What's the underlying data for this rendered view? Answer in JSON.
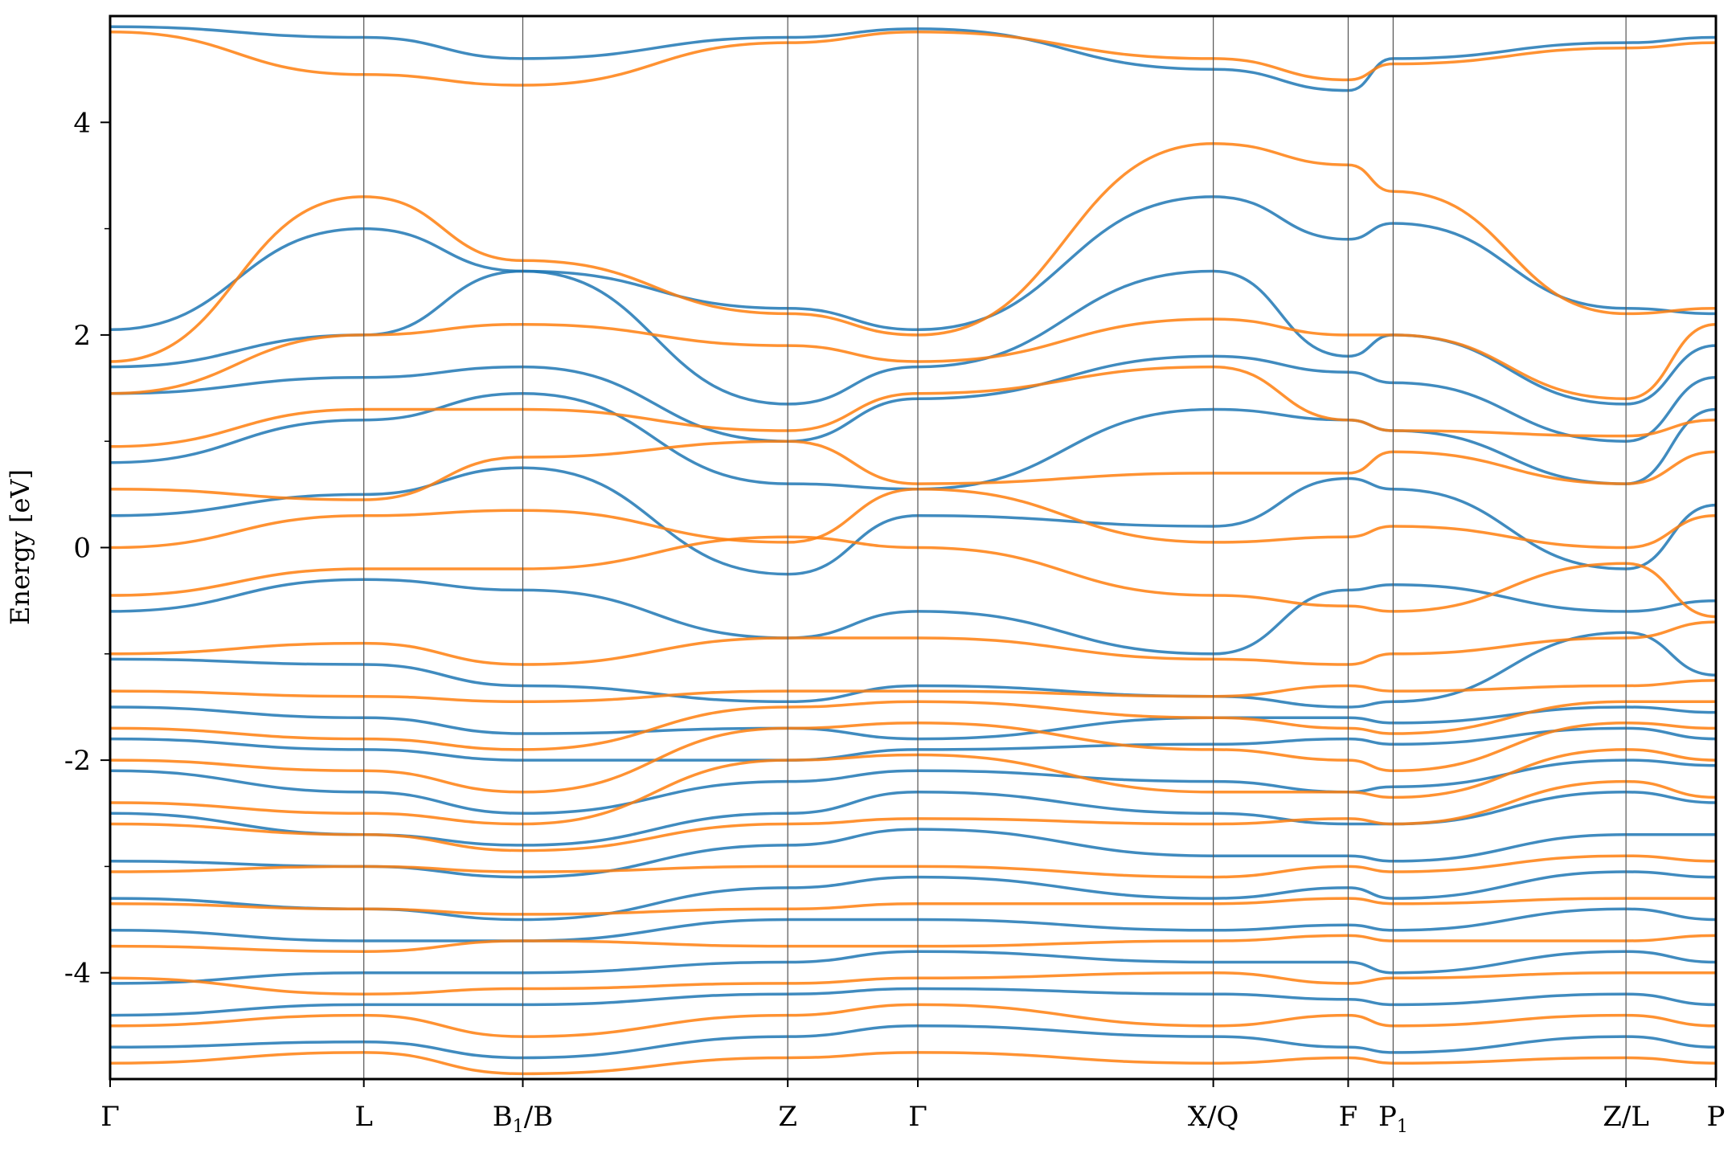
{
  "chart_data": {
    "type": "line",
    "title": "",
    "xlabel": "",
    "ylabel": "Energy [eV]",
    "ylim": [
      -5,
      5
    ],
    "y_ticks": [
      {
        "value": 4,
        "label": "4"
      },
      {
        "value": 2,
        "label": "2"
      },
      {
        "value": 0,
        "label": "0"
      },
      {
        "value": -2,
        "label": "-2"
      },
      {
        "value": -4,
        "label": "-4"
      }
    ],
    "y_minor_ticks": [
      3,
      1,
      -1,
      -3
    ],
    "grid": false,
    "x_ticks": [
      {
        "value": 0.0,
        "label": "Γ",
        "sub": ""
      },
      {
        "value": 0.158,
        "label": "L",
        "sub": ""
      },
      {
        "value": 0.257,
        "label": "B",
        "sub": "1",
        "suffix": "/B"
      },
      {
        "value": 0.422,
        "label": "Z",
        "sub": ""
      },
      {
        "value": 0.503,
        "label": "Γ",
        "sub": ""
      },
      {
        "value": 0.687,
        "label": "X/Q",
        "sub": ""
      },
      {
        "value": 0.771,
        "label": "F",
        "sub": ""
      },
      {
        "value": 0.799,
        "label": "P",
        "sub": "1"
      },
      {
        "value": 0.944,
        "label": "Z/L",
        "sub": ""
      },
      {
        "value": 1.0,
        "label": "P",
        "sub": ""
      }
    ],
    "xlim": [
      0,
      1
    ],
    "series": [
      {
        "color": "#1f77b4"
      },
      {
        "color": "#ff7f0e"
      }
    ],
    "bands": {
      "blue": [
        [
          4.9,
          4.8,
          4.6,
          4.8,
          4.88,
          4.5,
          4.3,
          4.6,
          4.75,
          4.8
        ],
        [
          2.05,
          3.0,
          2.6,
          2.25,
          2.05,
          3.3,
          2.9,
          3.05,
          2.25,
          2.2
        ],
        [
          1.7,
          2.0,
          2.6,
          1.35,
          1.7,
          2.6,
          1.8,
          2.0,
          1.35,
          1.9
        ],
        [
          1.45,
          1.6,
          1.7,
          1.0,
          1.4,
          1.8,
          1.65,
          1.55,
          1.0,
          1.6
        ],
        [
          0.8,
          1.2,
          1.45,
          0.6,
          0.55,
          1.3,
          1.2,
          1.1,
          0.6,
          1.3
        ],
        [
          0.3,
          0.5,
          0.75,
          -0.25,
          0.3,
          0.2,
          0.65,
          0.55,
          -0.2,
          0.4
        ],
        [
          -0.6,
          -0.3,
          -0.4,
          -0.85,
          -0.6,
          -1.0,
          -0.4,
          -0.35,
          -0.6,
          -0.5
        ],
        [
          -1.05,
          -1.1,
          -1.3,
          -1.45,
          -1.3,
          -1.4,
          -1.5,
          -1.45,
          -0.8,
          -1.2
        ],
        [
          -1.5,
          -1.6,
          -1.75,
          -1.7,
          -1.8,
          -1.6,
          -1.6,
          -1.65,
          -1.5,
          -1.55
        ],
        [
          -1.8,
          -1.9,
          -2.0,
          -2.0,
          -1.9,
          -1.85,
          -1.8,
          -1.85,
          -1.7,
          -1.8
        ],
        [
          -2.1,
          -2.3,
          -2.5,
          -2.2,
          -2.1,
          -2.2,
          -2.3,
          -2.25,
          -2.0,
          -2.05
        ],
        [
          -2.5,
          -2.7,
          -2.8,
          -2.5,
          -2.3,
          -2.5,
          -2.6,
          -2.6,
          -2.3,
          -2.4
        ],
        [
          -2.95,
          -3.0,
          -3.1,
          -2.8,
          -2.65,
          -2.9,
          -2.9,
          -2.95,
          -2.7,
          -2.7
        ],
        [
          -3.3,
          -3.4,
          -3.5,
          -3.2,
          -3.1,
          -3.3,
          -3.2,
          -3.3,
          -3.05,
          -3.1
        ],
        [
          -3.6,
          -3.7,
          -3.7,
          -3.5,
          -3.5,
          -3.6,
          -3.55,
          -3.6,
          -3.4,
          -3.5
        ],
        [
          -4.1,
          -4.0,
          -4.0,
          -3.9,
          -3.8,
          -3.9,
          -3.9,
          -4.0,
          -3.8,
          -3.9
        ],
        [
          -4.4,
          -4.3,
          -4.3,
          -4.2,
          -4.15,
          -4.2,
          -4.25,
          -4.3,
          -4.2,
          -4.3
        ],
        [
          -4.7,
          -4.65,
          -4.8,
          -4.6,
          -4.5,
          -4.6,
          -4.7,
          -4.75,
          -4.6,
          -4.7
        ]
      ],
      "orange": [
        [
          4.85,
          4.45,
          4.35,
          4.75,
          4.85,
          4.6,
          4.4,
          4.55,
          4.7,
          4.75
        ],
        [
          1.75,
          3.3,
          2.7,
          2.2,
          2.0,
          3.8,
          3.6,
          3.35,
          2.2,
          2.25
        ],
        [
          1.45,
          2.0,
          2.1,
          1.9,
          1.75,
          2.15,
          2.0,
          2.0,
          1.4,
          2.1
        ],
        [
          0.95,
          1.3,
          1.3,
          1.1,
          1.45,
          1.7,
          1.2,
          1.1,
          1.05,
          1.2
        ],
        [
          0.55,
          0.45,
          0.85,
          1.0,
          0.6,
          0.7,
          0.7,
          0.9,
          0.6,
          0.9
        ],
        [
          0.0,
          0.3,
          0.35,
          0.05,
          0.55,
          0.05,
          0.1,
          0.2,
          0.0,
          0.3
        ],
        [
          -0.45,
          -0.2,
          -0.2,
          0.1,
          0.0,
          -0.45,
          -0.55,
          -0.6,
          -0.15,
          -0.65
        ],
        [
          -1.0,
          -0.9,
          -1.1,
          -0.85,
          -0.85,
          -1.05,
          -1.1,
          -1.0,
          -0.85,
          -0.7
        ],
        [
          -1.35,
          -1.4,
          -1.45,
          -1.35,
          -1.35,
          -1.4,
          -1.3,
          -1.35,
          -1.3,
          -1.25
        ],
        [
          -1.7,
          -1.8,
          -1.9,
          -1.5,
          -1.45,
          -1.6,
          -1.7,
          -1.75,
          -1.45,
          -1.45
        ],
        [
          -2.0,
          -2.1,
          -2.3,
          -1.7,
          -1.65,
          -1.9,
          -2.0,
          -2.1,
          -1.65,
          -1.7
        ],
        [
          -2.4,
          -2.5,
          -2.6,
          -2.0,
          -1.95,
          -2.3,
          -2.3,
          -2.35,
          -1.9,
          -2.0
        ],
        [
          -2.6,
          -2.7,
          -2.85,
          -2.6,
          -2.55,
          -2.6,
          -2.55,
          -2.6,
          -2.2,
          -2.35
        ],
        [
          -3.05,
          -3.0,
          -3.05,
          -3.0,
          -3.0,
          -3.1,
          -3.0,
          -3.05,
          -2.9,
          -2.95
        ],
        [
          -3.35,
          -3.4,
          -3.45,
          -3.4,
          -3.35,
          -3.35,
          -3.3,
          -3.35,
          -3.3,
          -3.3
        ],
        [
          -3.75,
          -3.8,
          -3.7,
          -3.75,
          -3.75,
          -3.7,
          -3.65,
          -3.7,
          -3.7,
          -3.65
        ],
        [
          -4.05,
          -4.2,
          -4.15,
          -4.1,
          -4.05,
          -4.0,
          -4.1,
          -4.05,
          -4.0,
          -4.0
        ],
        [
          -4.5,
          -4.4,
          -4.6,
          -4.4,
          -4.3,
          -4.5,
          -4.4,
          -4.5,
          -4.4,
          -4.5
        ],
        [
          -4.85,
          -4.75,
          -4.95,
          -4.8,
          -4.75,
          -4.85,
          -4.8,
          -4.85,
          -4.8,
          -4.85
        ]
      ]
    }
  }
}
